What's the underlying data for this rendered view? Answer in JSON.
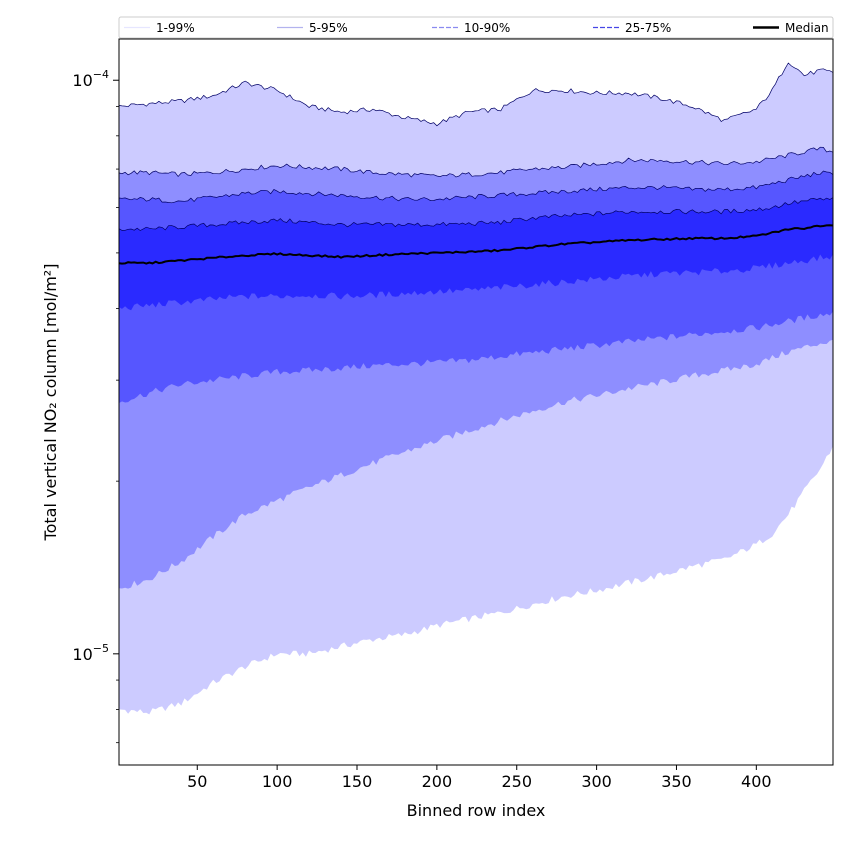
{
  "chart_data": {
    "type": "area",
    "xlabel": "Binned row index",
    "ylabel": "Total vertical NO₂ column [mol/m²]",
    "xlim": [
      1,
      448
    ],
    "ylim": [
      6.4e-06,
      0.000118
    ],
    "yscale": "log",
    "x_ticks": [
      50,
      100,
      150,
      200,
      250,
      300,
      350,
      400
    ],
    "y_ticks": [
      {
        "value": 1e-05,
        "base": "10",
        "exp": "−5"
      },
      {
        "value": 0.0001,
        "base": "10",
        "exp": "−4"
      }
    ],
    "legend": {
      "placement": "top, above plot",
      "entries": [
        {
          "label": "1-99%",
          "color": "#e6e6ff",
          "style": "solid"
        },
        {
          "label": "5-95%",
          "color": "#b3b3ee",
          "style": "solid"
        },
        {
          "label": "10-90%",
          "color": "#8a8af0",
          "style": "dashed"
        },
        {
          "label": "25-75%",
          "color": "#4646e6",
          "style": "dashed"
        },
        {
          "label": "Median",
          "color": "#000000",
          "style": "solid"
        }
      ]
    },
    "x": [
      1,
      20,
      40,
      60,
      80,
      100,
      120,
      140,
      160,
      180,
      200,
      220,
      240,
      260,
      280,
      300,
      320,
      340,
      360,
      380,
      400,
      410,
      420,
      430,
      440,
      448
    ],
    "bands": [
      {
        "name": "1-99%",
        "color": "#cccbff",
        "lower": [
          8e-06,
          7.9e-06,
          8.2e-06,
          8.9e-06,
          9.5e-06,
          1e-05,
          1e-05,
          1.03e-05,
          1.06e-05,
          1.08e-05,
          1.12e-05,
          1.15e-05,
          1.18e-05,
          1.22e-05,
          1.26e-05,
          1.29e-05,
          1.33e-05,
          1.37e-05,
          1.42e-05,
          1.46e-05,
          1.55e-05,
          1.62e-05,
          1.75e-05,
          1.92e-05,
          2.1e-05,
          2.3e-05
        ],
        "upper": [
          9e-05,
          9.1e-05,
          9.2e-05,
          9.4e-05,
          9.9e-05,
          9.6e-05,
          9e-05,
          8.8e-05,
          8.9e-05,
          8.6e-05,
          8.4e-05,
          8.8e-05,
          8.9e-05,
          9.6e-05,
          9.6e-05,
          9.5e-05,
          9.5e-05,
          9.3e-05,
          9e-05,
          8.5e-05,
          8.9e-05,
          9.6e-05,
          0.000108,
          0.000102,
          0.000104,
          0.000103
        ]
      },
      {
        "name": "5-95%",
        "color": "#8e8eff",
        "lower": [
          1.3e-05,
          1.35e-05,
          1.45e-05,
          1.6e-05,
          1.75e-05,
          1.85e-05,
          1.95e-05,
          2.05e-05,
          2.15e-05,
          2.25e-05,
          2.35e-05,
          2.45e-05,
          2.55e-05,
          2.65e-05,
          2.75e-05,
          2.82e-05,
          2.9e-05,
          2.97e-05,
          3.05e-05,
          3.12e-05,
          3.2e-05,
          3.28e-05,
          3.36e-05,
          3.42e-05,
          3.48e-05,
          3.5e-05
        ],
        "upper": [
          6.9e-05,
          6.9e-05,
          6.85e-05,
          6.9e-05,
          7e-05,
          7.1e-05,
          7.05e-05,
          7e-05,
          6.9e-05,
          6.85e-05,
          6.8e-05,
          6.85e-05,
          6.9e-05,
          7e-05,
          7.05e-05,
          7.15e-05,
          7.25e-05,
          7.25e-05,
          7.2e-05,
          7.15e-05,
          7.2e-05,
          7.3e-05,
          7.4e-05,
          7.5e-05,
          7.6e-05,
          7.5e-05
        ]
      },
      {
        "name": "10-90%",
        "color": "#5656ff",
        "lower": [
          2.75e-05,
          2.85e-05,
          2.95e-05,
          3e-05,
          3.05e-05,
          3.1e-05,
          3.12e-05,
          3.15e-05,
          3.18e-05,
          3.2e-05,
          3.22e-05,
          3.25e-05,
          3.3e-05,
          3.35e-05,
          3.4e-05,
          3.45e-05,
          3.5e-05,
          3.55e-05,
          3.6e-05,
          3.65e-05,
          3.7e-05,
          3.75e-05,
          3.8e-05,
          3.85e-05,
          3.9e-05,
          3.92e-05
        ],
        "upper": [
          6.2e-05,
          6.2e-05,
          6.15e-05,
          6.25e-05,
          6.35e-05,
          6.4e-05,
          6.35e-05,
          6.3e-05,
          6.25e-05,
          6.2e-05,
          6.2e-05,
          6.25e-05,
          6.3e-05,
          6.35e-05,
          6.4e-05,
          6.45e-05,
          6.5e-05,
          6.5e-05,
          6.45e-05,
          6.45e-05,
          6.5e-05,
          6.6e-05,
          6.7e-05,
          6.8e-05,
          6.9e-05,
          6.85e-05
        ]
      },
      {
        "name": "25-75%",
        "color": "#2a2aff",
        "lower": [
          4e-05,
          4.05e-05,
          4.1e-05,
          4.15e-05,
          4.2e-05,
          4.2e-05,
          4.22e-05,
          4.2e-05,
          4.22e-05,
          4.25e-05,
          4.28e-05,
          4.3e-05,
          4.35e-05,
          4.4e-05,
          4.45e-05,
          4.5e-05,
          4.55e-05,
          4.6e-05,
          4.62e-05,
          4.65e-05,
          4.7e-05,
          4.75e-05,
          4.8e-05,
          4.85e-05,
          4.9e-05,
          4.92e-05
        ],
        "upper": [
          5.5e-05,
          5.5e-05,
          5.55e-05,
          5.6e-05,
          5.65e-05,
          5.7e-05,
          5.65e-05,
          5.6e-05,
          5.6e-05,
          5.6e-05,
          5.6e-05,
          5.62e-05,
          5.65e-05,
          5.75e-05,
          5.8e-05,
          5.85e-05,
          5.9e-05,
          5.9e-05,
          5.9e-05,
          5.9e-05,
          5.95e-05,
          6e-05,
          6.1e-05,
          6.15e-05,
          6.2e-05,
          6.2e-05
        ]
      }
    ],
    "median": [
      4.8e-05,
      4.8e-05,
      4.85e-05,
      4.9e-05,
      4.95e-05,
      4.98e-05,
      4.95e-05,
      4.92e-05,
      4.95e-05,
      4.98e-05,
      5e-05,
      5.02e-05,
      5.05e-05,
      5.12e-05,
      5.18e-05,
      5.22e-05,
      5.26e-05,
      5.28e-05,
      5.3e-05,
      5.3e-05,
      5.35e-05,
      5.42e-05,
      5.5e-05,
      5.52e-05,
      5.58e-05,
      5.6e-05
    ]
  }
}
